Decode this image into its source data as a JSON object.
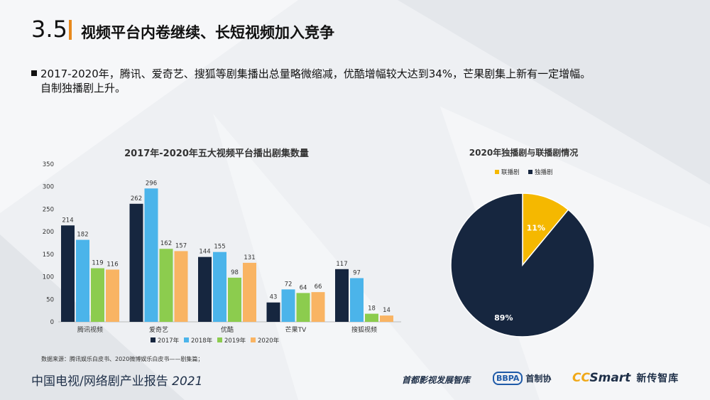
{
  "header": {
    "section_number": "3.5",
    "title": "视频平台内卷继续、长短视频加入竞争"
  },
  "bullet": {
    "line1": "2017-2020年，腾讯、爱奇艺、搜狐等剧集播出总量略微缩减，优酷增幅较大达到34%，芒果剧集上新有一定增幅。",
    "line2": "自制独播剧上升。"
  },
  "colors": {
    "accent": "#e8891c",
    "dark_navy": "#16263f",
    "sky_blue": "#4bb4ea",
    "green": "#8ccc4e",
    "orange": "#f9b463",
    "gold": "#f5b800"
  },
  "chart_data": [
    {
      "type": "bar",
      "title": "2017年-2020年五大视频平台播出剧集数量",
      "categories": [
        "腾讯视频",
        "爱奇艺",
        "优酷",
        "芒果TV",
        "搜狐视频"
      ],
      "series": [
        {
          "name": "2017年",
          "color": "#16263f",
          "values": [
            214,
            262,
            144,
            43,
            117
          ]
        },
        {
          "name": "2018年",
          "color": "#4bb4ea",
          "values": [
            182,
            296,
            155,
            72,
            97
          ]
        },
        {
          "name": "2019年",
          "color": "#8ccc4e",
          "values": [
            119,
            162,
            98,
            64,
            18
          ]
        },
        {
          "name": "2020年",
          "color": "#f9b463",
          "values": [
            116,
            157,
            131,
            66,
            14
          ]
        }
      ],
      "ylim": [
        0,
        350
      ],
      "yticks": [
        0,
        50,
        100,
        150,
        200,
        250,
        300,
        350
      ],
      "grid": false,
      "legend": "bottom"
    },
    {
      "type": "pie",
      "title": "2020年独播剧与联播剧情况",
      "slices": [
        {
          "name": "联播剧",
          "value": 11,
          "label": "11%",
          "color": "#f5b800"
        },
        {
          "name": "独播剧",
          "value": 89,
          "label": "89%",
          "color": "#16263f"
        }
      ],
      "legend": "top-left"
    }
  ],
  "footer": {
    "source": "数据来源：腾讯娱乐白皮书、2020微博娱乐白皮书——剧集篇；",
    "report_title": "中国电视/网络剧产业报告",
    "report_year": "2021",
    "logo1": "首都影视发展智库",
    "logo2_badge": "BBPA",
    "logo2_text": "首制协",
    "logo3_cc": "CC",
    "logo3_smart": "Smart",
    "logo3_text": "新传智库"
  }
}
